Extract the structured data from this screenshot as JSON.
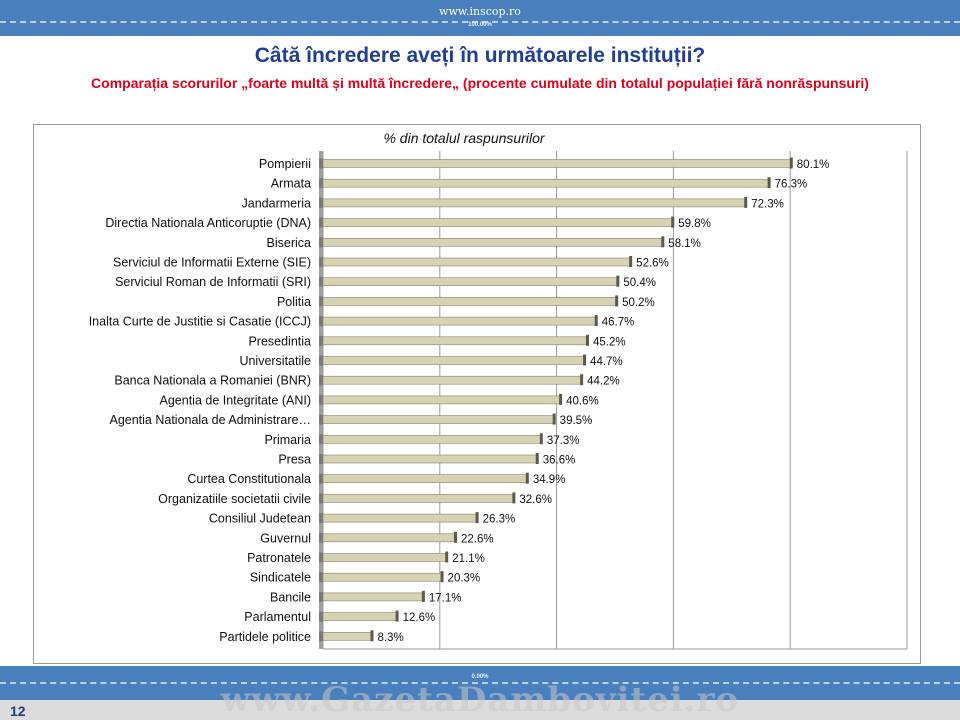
{
  "header": {
    "url": "www.inscop.ro",
    "scale_top": "100.00%",
    "scale_bottom": "0.00%"
  },
  "title": "Câtă încredere aveți în următoarele instituții?",
  "subtitle": "Comparația scorurilor „foarte multă și multă încredere„ (procente cumulate din totalul populației fără nonrăspunsuri)",
  "footer": {
    "page_number": "12",
    "watermark": "www.GazetaDambovitei.ro"
  },
  "colors": {
    "band": "#4a7fbd",
    "title": "#1f3f99",
    "subtitle": "#e1001a",
    "bar": "#d8d2b4",
    "bar_edge": "#8a8468"
  },
  "chart_data": {
    "type": "bar",
    "orientation": "horizontal",
    "title": "% din totalul raspunsurilor",
    "xlim": [
      0,
      100
    ],
    "grid": true,
    "categories": [
      "Pompierii",
      "Armata",
      "Jandarmeria",
      "Directia Nationala Anticoruptie (DNA)",
      "Biserica",
      "Serviciul de Informatii Externe (SIE)",
      "Serviciul Roman de Informatii (SRI)",
      "Politia",
      "Inalta Curte de Justitie si Casatie (ICCJ)",
      "Presedintia",
      "Universitatile",
      "Banca Nationala a Romaniei (BNR)",
      "Agentia de Integritate (ANI)",
      "Agentia Nationala de Administrare…",
      "Primaria",
      "Presa",
      "Curtea Constitutionala",
      "Organizatiile societatii civile",
      "Consiliul Judetean",
      "Guvernul",
      "Patronatele",
      "Sindicatele",
      "Bancile",
      "Parlamentul",
      "Partidele politice"
    ],
    "values": [
      80.1,
      76.3,
      72.3,
      59.8,
      58.1,
      52.6,
      50.4,
      50.2,
      46.7,
      45.2,
      44.7,
      44.2,
      40.6,
      39.5,
      37.3,
      36.6,
      34.9,
      32.6,
      26.3,
      22.6,
      21.1,
      20.3,
      17.1,
      12.6,
      8.3
    ],
    "value_labels": [
      "80.1%",
      "76.3%",
      "72.3%",
      "59.8%",
      "58.1%",
      "52.6%",
      "50.4%",
      "50.2%",
      "46.7%",
      "45.2%",
      "44.7%",
      "44.2%",
      "40.6%",
      "39.5%",
      "37.3%",
      "36.6%",
      "34.9%",
      "32.6%",
      "26.3%",
      "22.6%",
      "21.1%",
      "20.3%",
      "17.1%",
      "12.6%",
      "8.3%"
    ]
  }
}
